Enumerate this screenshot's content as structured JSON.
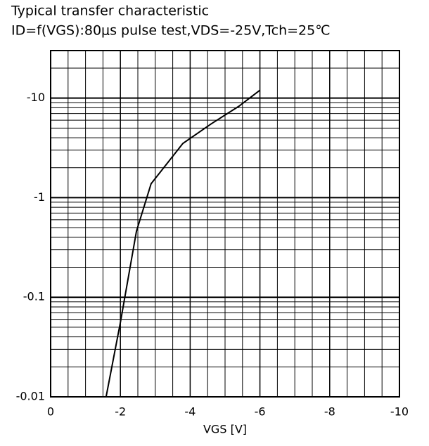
{
  "chart_data": {
    "type": "line",
    "title": "Typical transfer characteristic",
    "subtitle": "ID=f(VGS):80μs pulse test,VDS=-25V,Tch=25℃",
    "x_label": "VGS [V]",
    "xlim": [
      0,
      -10
    ],
    "xticks": [
      0,
      -2,
      -4,
      -6,
      -8,
      -10
    ],
    "ylim": [
      -0.01,
      -30
    ],
    "yticks": [
      -0.01,
      -0.1,
      -1,
      -10
    ],
    "log_y": true,
    "grid": true,
    "series": [
      {
        "name": "ID",
        "color": "#000000",
        "x": [
          -1.59,
          -2.0,
          -2.46,
          -2.88,
          -3.79,
          -4.6,
          -5.4,
          -6.0
        ],
        "values": [
          -0.01,
          -0.056,
          -0.46,
          -1.38,
          -3.5,
          -5.5,
          -8.3,
          -12
        ]
      }
    ]
  }
}
